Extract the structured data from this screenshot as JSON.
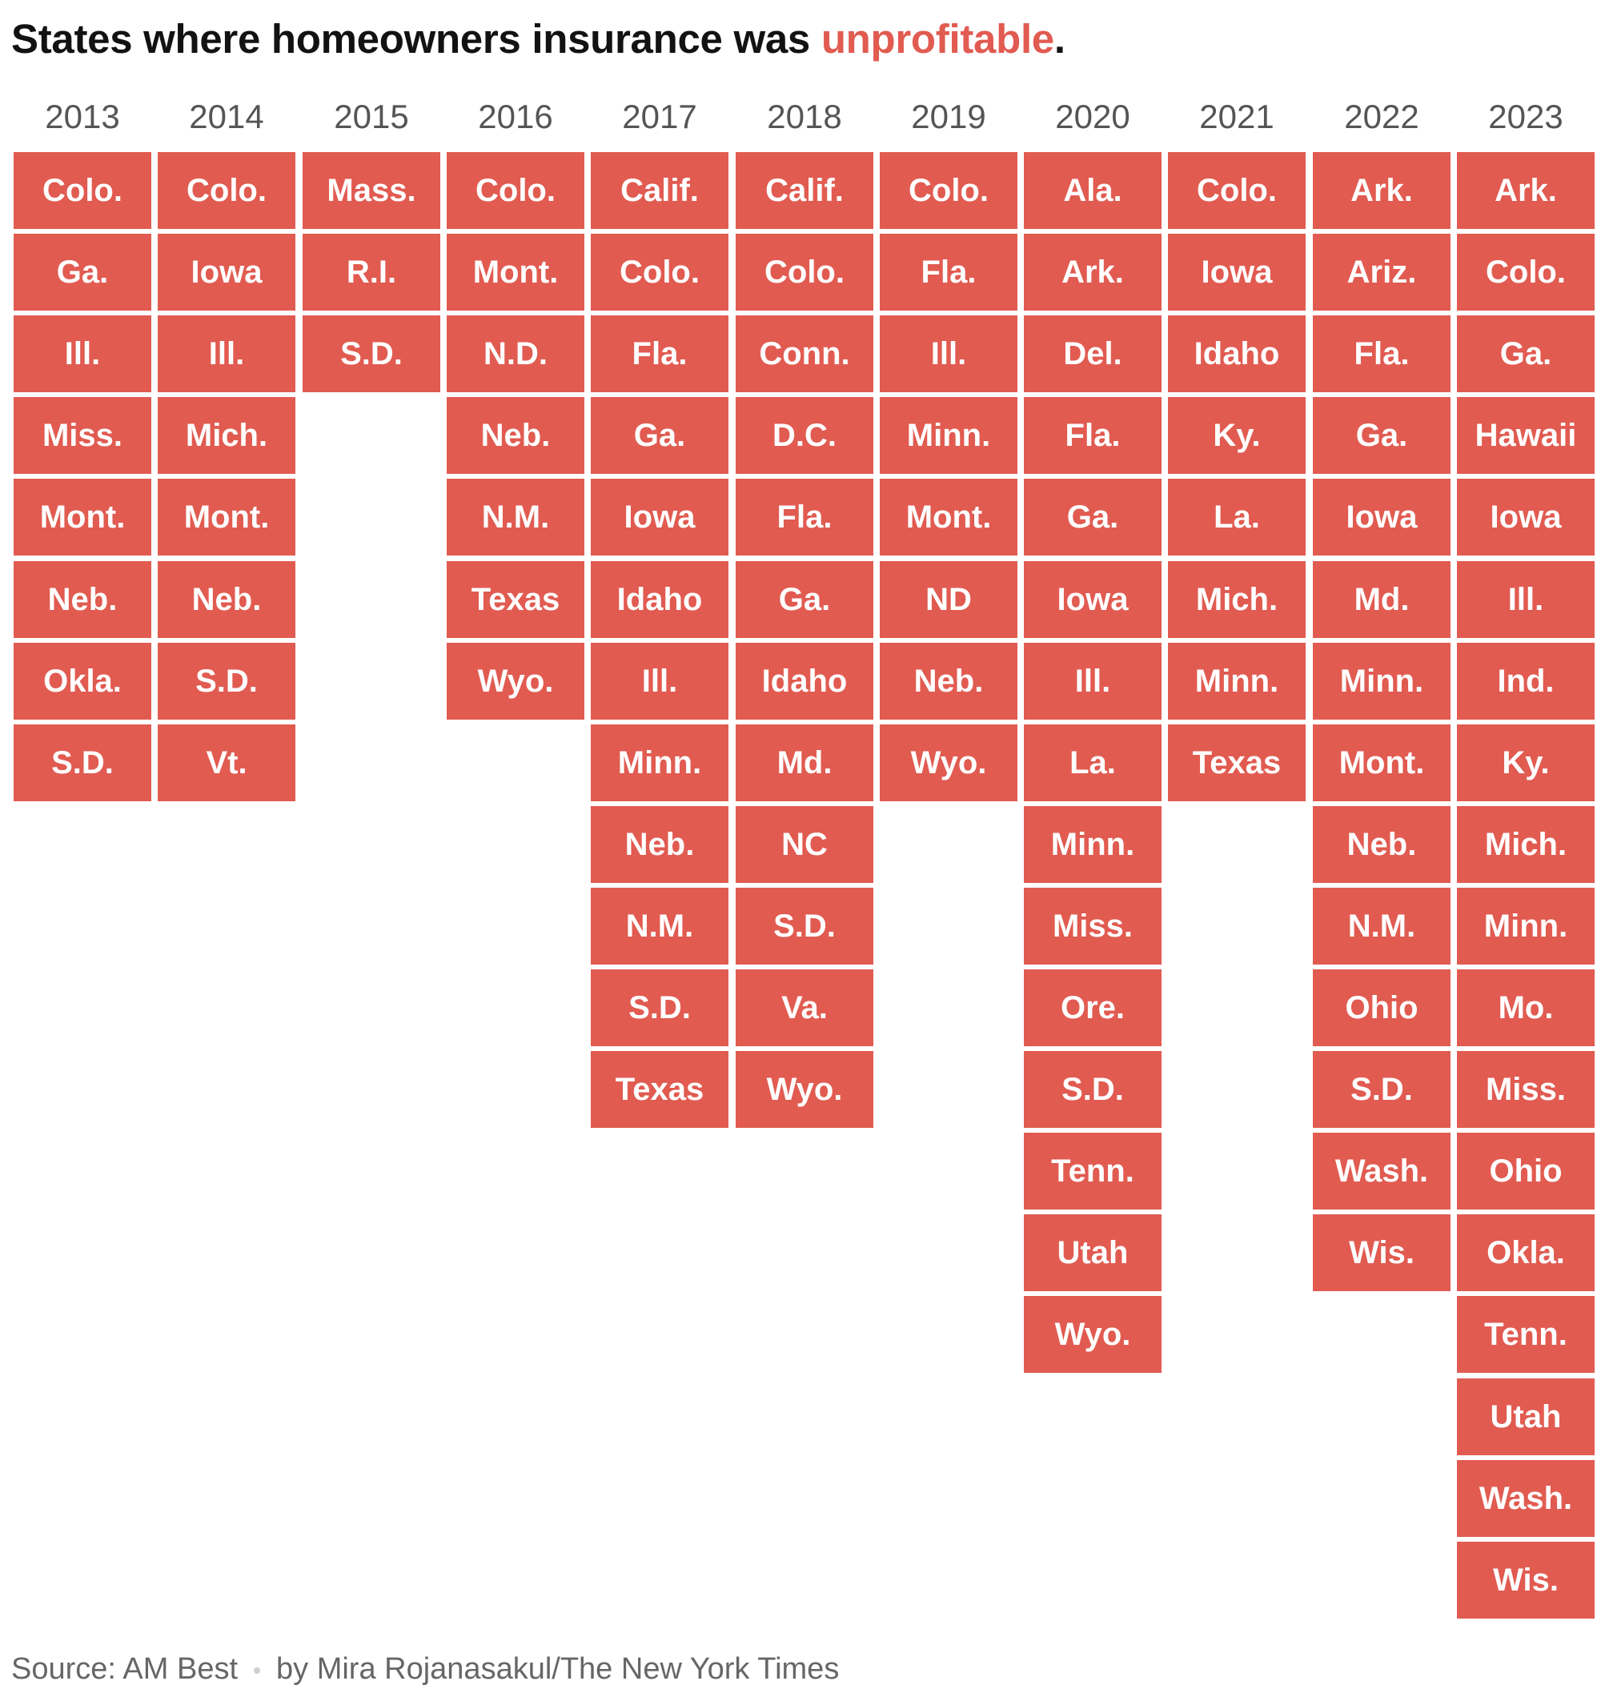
{
  "header": {
    "title_prefix": "States where homeowners insurance was",
    "title_accent": "unprofitable",
    "title_suffix": "."
  },
  "colors": {
    "cell": "#e15b51",
    "cell_text": "#ffffff",
    "title": "#121212",
    "year_label": "#555555"
  },
  "chart_data": {
    "type": "table",
    "title": "States where homeowners insurance was unprofitable.",
    "columns": [
      {
        "year": "2013",
        "states": [
          "Colo.",
          "Ga.",
          "Ill.",
          "Miss.",
          "Mont.",
          "Neb.",
          "Okla.",
          "S.D."
        ]
      },
      {
        "year": "2014",
        "states": [
          "Colo.",
          "Iowa",
          "Ill.",
          "Mich.",
          "Mont.",
          "Neb.",
          "S.D.",
          "Vt."
        ]
      },
      {
        "year": "2015",
        "states": [
          "Mass.",
          "R.I.",
          "S.D."
        ]
      },
      {
        "year": "2016",
        "states": [
          "Colo.",
          "Mont.",
          "N.D.",
          "Neb.",
          "N.M.",
          "Texas",
          "Wyo."
        ]
      },
      {
        "year": "2017",
        "states": [
          "Calif.",
          "Colo.",
          "Fla.",
          "Ga.",
          "Iowa",
          "Idaho",
          "Ill.",
          "Minn.",
          "Neb.",
          "N.M.",
          "S.D.",
          "Texas"
        ]
      },
      {
        "year": "2018",
        "states": [
          "Calif.",
          "Colo.",
          "Conn.",
          "D.C.",
          "Fla.",
          "Ga.",
          "Idaho",
          "Md.",
          "NC",
          "S.D.",
          "Va.",
          "Wyo."
        ]
      },
      {
        "year": "2019",
        "states": [
          "Colo.",
          "Fla.",
          "Ill.",
          "Minn.",
          "Mont.",
          "ND",
          "Neb.",
          "Wyo."
        ]
      },
      {
        "year": "2020",
        "states": [
          "Ala.",
          "Ark.",
          "Del.",
          "Fla.",
          "Ga.",
          "Iowa",
          "Ill.",
          "La.",
          "Minn.",
          "Miss.",
          "Ore.",
          "S.D.",
          "Tenn.",
          "Utah",
          "Wyo."
        ]
      },
      {
        "year": "2021",
        "states": [
          "Colo.",
          "Iowa",
          "Idaho",
          "Ky.",
          "La.",
          "Mich.",
          "Minn.",
          "Texas"
        ]
      },
      {
        "year": "2022",
        "states": [
          "Ark.",
          "Ariz.",
          "Fla.",
          "Ga.",
          "Iowa",
          "Md.",
          "Minn.",
          "Mont.",
          "Neb.",
          "N.M.",
          "Ohio",
          "S.D.",
          "Wash.",
          "Wis."
        ]
      },
      {
        "year": "2023",
        "states": [
          "Ark.",
          "Colo.",
          "Ga.",
          "Hawaii",
          "Iowa",
          "Ill.",
          "Ind.",
          "Ky.",
          "Mich.",
          "Minn.",
          "Mo.",
          "Miss.",
          "Ohio",
          "Okla.",
          "Tenn.",
          "Utah",
          "Wash.",
          "Wis."
        ]
      }
    ]
  },
  "footer": {
    "source": "Source: AM Best",
    "credit": "by Mira Rojanasakul/The New York Times"
  }
}
